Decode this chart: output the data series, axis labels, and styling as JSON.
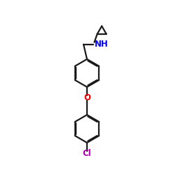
{
  "bg_color": "#ffffff",
  "bond_color": "#1a1a1a",
  "bond_lw": 1.6,
  "dbo": 0.055,
  "N_color": "#0000ee",
  "O_color": "#ee0000",
  "Cl_color": "#aa00aa",
  "font_size_atom": 8.5,
  "figsize": [
    2.5,
    2.5
  ],
  "dpi": 100,
  "xlim": [
    0,
    10
  ],
  "ylim": [
    0,
    10
  ]
}
